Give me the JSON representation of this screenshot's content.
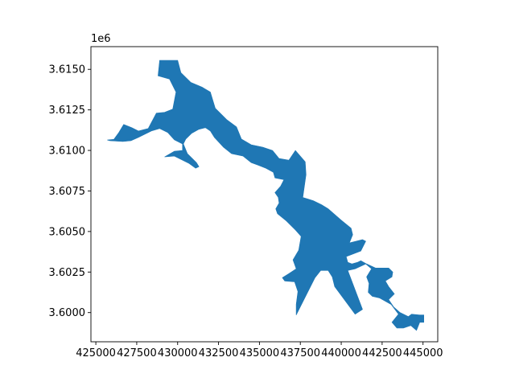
{
  "chart_data": {
    "type": "map",
    "color": "#1f77b4",
    "x_ticks": [
      "425000",
      "427500",
      "430000",
      "432500",
      "435000",
      "437500",
      "440000",
      "442500",
      "445000"
    ],
    "x_tick_values": [
      425000,
      427500,
      430000,
      432500,
      435000,
      437500,
      440000,
      442500,
      445000
    ],
    "y_ticks": [
      "3.6000",
      "3.6025",
      "3.6050",
      "3.6075",
      "3.6100",
      "3.6125",
      "3.6150"
    ],
    "y_tick_values": [
      3600000,
      3602500,
      3605000,
      3607500,
      3610000,
      3612500,
      3615000
    ],
    "y_offset_label": "1e6",
    "xlim": [
      424700,
      445900
    ],
    "ylim": [
      3598200,
      3616400
    ],
    "grid": false,
    "legend": false,
    "lake_outline": [
      [
        425700,
        3610640
      ],
      [
        426100,
        3610680
      ],
      [
        426400,
        3611100
      ],
      [
        426700,
        3611600
      ],
      [
        427200,
        3611400
      ],
      [
        427600,
        3611200
      ],
      [
        428200,
        3611350
      ],
      [
        428700,
        3612300
      ],
      [
        429200,
        3612350
      ],
      [
        429700,
        3612550
      ],
      [
        429900,
        3613600
      ],
      [
        429500,
        3614400
      ],
      [
        428800,
        3614600
      ],
      [
        428900,
        3615550
      ],
      [
        430000,
        3615550
      ],
      [
        430200,
        3614800
      ],
      [
        430800,
        3614200
      ],
      [
        431500,
        3613900
      ],
      [
        432000,
        3613600
      ],
      [
        432300,
        3612600
      ],
      [
        433000,
        3611900
      ],
      [
        433600,
        3611450
      ],
      [
        433900,
        3610700
      ],
      [
        434500,
        3610350
      ],
      [
        435200,
        3610200
      ],
      [
        435800,
        3610000
      ],
      [
        436200,
        3609500
      ],
      [
        436800,
        3609400
      ],
      [
        437200,
        3610000
      ],
      [
        437800,
        3609300
      ],
      [
        437850,
        3608500
      ],
      [
        437650,
        3607100
      ],
      [
        438300,
        3606900
      ],
      [
        438800,
        3606650
      ],
      [
        439200,
        3606400
      ],
      [
        440000,
        3605700
      ],
      [
        440600,
        3605200
      ],
      [
        440700,
        3604800
      ],
      [
        440500,
        3604300
      ],
      [
        441300,
        3604500
      ],
      [
        441500,
        3604400
      ],
      [
        441200,
        3603800
      ],
      [
        440300,
        3603450
      ],
      [
        440400,
        3603100
      ],
      [
        440650,
        3603000
      ],
      [
        441000,
        3603100
      ],
      [
        441200,
        3603200
      ],
      [
        441550,
        3603000
      ],
      [
        442100,
        3602750
      ],
      [
        442900,
        3602750
      ],
      [
        443150,
        3602500
      ],
      [
        443100,
        3602200
      ],
      [
        442700,
        3601950
      ],
      [
        442900,
        3601600
      ],
      [
        443250,
        3601150
      ],
      [
        442900,
        3600800
      ],
      [
        443200,
        3600350
      ],
      [
        443600,
        3600000
      ],
      [
        444100,
        3599750
      ],
      [
        444300,
        3599900
      ],
      [
        444800,
        3599850
      ],
      [
        445050,
        3599850
      ],
      [
        445050,
        3599400
      ],
      [
        444800,
        3599400
      ],
      [
        444600,
        3598900
      ],
      [
        444250,
        3599200
      ],
      [
        443800,
        3599050
      ],
      [
        443400,
        3599050
      ],
      [
        443100,
        3599400
      ],
      [
        443500,
        3599900
      ],
      [
        443050,
        3600500
      ],
      [
        442350,
        3600900
      ],
      [
        441900,
        3601000
      ],
      [
        441650,
        3601250
      ],
      [
        441700,
        3601800
      ],
      [
        441550,
        3602200
      ],
      [
        441850,
        3602700
      ],
      [
        441500,
        3603000
      ],
      [
        440850,
        3602700
      ],
      [
        440400,
        3602600
      ],
      [
        441300,
        3600200
      ],
      [
        440850,
        3599900
      ],
      [
        439600,
        3601600
      ],
      [
        439450,
        3602200
      ],
      [
        439200,
        3602600
      ],
      [
        438750,
        3602600
      ],
      [
        438400,
        3602150
      ],
      [
        437250,
        3599850
      ],
      [
        437250,
        3600500
      ],
      [
        437350,
        3601300
      ],
      [
        437150,
        3601900
      ],
      [
        436550,
        3601950
      ],
      [
        436400,
        3602150
      ],
      [
        436800,
        3602400
      ],
      [
        437250,
        3602700
      ],
      [
        437050,
        3603250
      ],
      [
        437400,
        3603850
      ],
      [
        437550,
        3604700
      ],
      [
        437200,
        3605100
      ],
      [
        436650,
        3605650
      ],
      [
        436100,
        3606100
      ],
      [
        436000,
        3606400
      ],
      [
        436200,
        3606750
      ],
      [
        436150,
        3607100
      ],
      [
        435950,
        3607400
      ],
      [
        436300,
        3607800
      ],
      [
        436500,
        3608200
      ],
      [
        435950,
        3608300
      ],
      [
        435850,
        3608650
      ],
      [
        435400,
        3608900
      ],
      [
        434900,
        3609100
      ],
      [
        434500,
        3609250
      ],
      [
        434000,
        3609650
      ],
      [
        433300,
        3609800
      ],
      [
        432800,
        3610200
      ],
      [
        432250,
        3610800
      ],
      [
        432000,
        3611200
      ],
      [
        431700,
        3611400
      ],
      [
        431300,
        3611300
      ],
      [
        430850,
        3611050
      ],
      [
        430500,
        3610700
      ],
      [
        430350,
        3610400
      ],
      [
        430600,
        3609800
      ],
      [
        431150,
        3609250
      ],
      [
        431300,
        3609000
      ],
      [
        431100,
        3608900
      ],
      [
        430700,
        3609200
      ],
      [
        429800,
        3609650
      ],
      [
        429200,
        3609600
      ],
      [
        429800,
        3609950
      ],
      [
        430300,
        3610000
      ],
      [
        430300,
        3610400
      ],
      [
        429800,
        3610650
      ],
      [
        429400,
        3611100
      ],
      [
        428900,
        3611350
      ],
      [
        428400,
        3611200
      ],
      [
        427600,
        3610800
      ],
      [
        427150,
        3610600
      ],
      [
        426650,
        3610550
      ],
      [
        425850,
        3610600
      ]
    ]
  }
}
